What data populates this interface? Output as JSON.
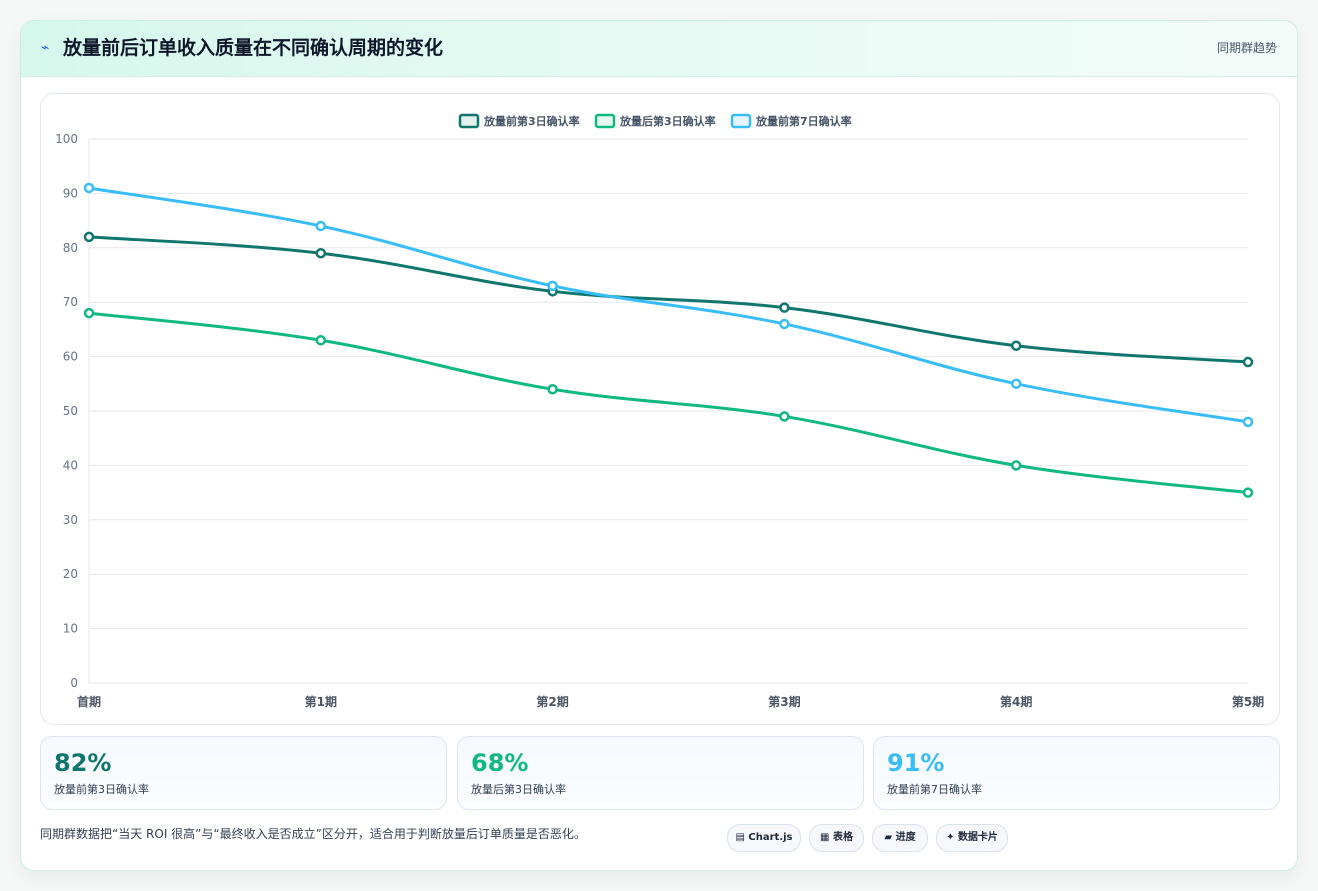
{
  "header": {
    "icon": "lightning-icon",
    "title": "放量前后订单收入质量在不同确认周期的变化",
    "link": "同期群趋势"
  },
  "chart_data": {
    "type": "line",
    "categories": [
      "首期",
      "第1期",
      "第2期",
      "第3期",
      "第4期",
      "第5期"
    ],
    "series": [
      {
        "name": "放量前第3日确认率",
        "color": "#0f766e",
        "values": [
          82,
          79,
          72,
          69,
          62,
          59
        ]
      },
      {
        "name": "放量后第3日确认率",
        "color": "#10b981",
        "values": [
          68,
          63,
          54,
          49,
          40,
          35
        ]
      },
      {
        "name": "放量前第7日确认率",
        "color": "#38bdf8",
        "values": [
          91,
          84,
          73,
          66,
          55,
          48
        ]
      }
    ],
    "ylim": [
      0,
      100
    ],
    "yticks": [
      0,
      10,
      20,
      30,
      40,
      50,
      60,
      70,
      80,
      90,
      100
    ],
    "grid": true,
    "legend": "top-center"
  },
  "stats": [
    {
      "value": "82%",
      "label": "放量前第3日确认率",
      "color": "#0f766e"
    },
    {
      "value": "68%",
      "label": "放量后第3日确认率",
      "color": "#10b981"
    },
    {
      "value": "91%",
      "label": "放量前第7日确认率",
      "color": "#38bdf8"
    }
  ],
  "footnote": "同期群数据把“当天 ROI 很高”与“最终收入是否成立”区分开，适合用于判断放量后订单质量是否恶化。",
  "chips": [
    {
      "icon": "chart-icon",
      "glyph": "▤",
      "label": "Chart.js"
    },
    {
      "icon": "table-icon",
      "glyph": "▦",
      "label": "表格"
    },
    {
      "icon": "progress-icon",
      "glyph": "▰",
      "label": "进度"
    },
    {
      "icon": "sparkle-icon",
      "glyph": "✦",
      "label": "数据卡片"
    }
  ]
}
